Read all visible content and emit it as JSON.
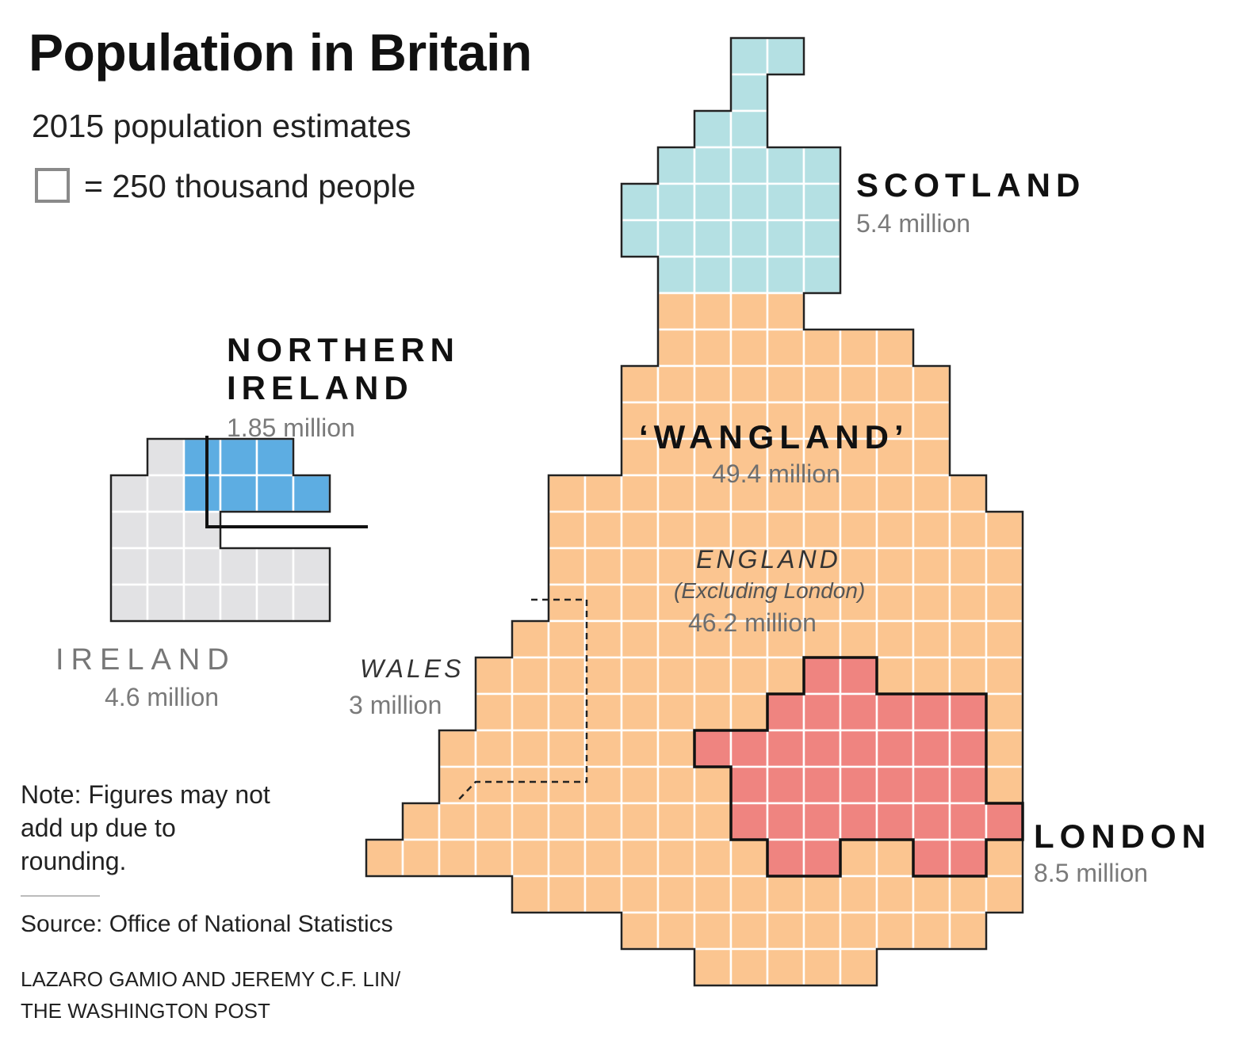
{
  "header": {
    "title": "Population in Britain",
    "subtitle": "2015 population estimates",
    "legend_label": "= 250 thousand people"
  },
  "regions": {
    "scotland": {
      "name": "SCOTLAND",
      "value": "5.4 million",
      "color": "#b4e0e3"
    },
    "northern_ireland": {
      "name_line1": "NORTHERN",
      "name_line2": "IRELAND",
      "value": "1.85 million",
      "color": "#5dade2"
    },
    "ireland": {
      "name": "IRELAND",
      "value": "4.6 million",
      "color": "#e2e2e4"
    },
    "wangland": {
      "name": "‘WANGLAND’",
      "value": "49.4 million",
      "color": "#fbc590"
    },
    "england": {
      "name": "ENGLAND",
      "note": "(Excluding London)",
      "value": "46.2 million"
    },
    "wales": {
      "name": "WALES",
      "value": "3 million"
    },
    "london": {
      "name": "LONDON",
      "value": "8.5 million",
      "color": "#ef8480"
    }
  },
  "footer": {
    "note": "Note: Figures may not add up due to rounding.",
    "source": "Source: Office of National Statistics",
    "credit_line1": "LAZARO GAMIO AND JEREMY C.F. LIN/",
    "credit_line2": "THE WASHINGTON POST"
  }
}
